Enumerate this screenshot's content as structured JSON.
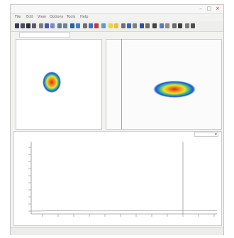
{
  "window": {
    "title": ""
  },
  "menu": {
    "items": [
      "File",
      "Edit",
      "View",
      "Options",
      "Tools",
      "Help"
    ]
  },
  "tab": {
    "label": ""
  },
  "graph": {
    "title": "",
    "selector_value": "",
    "marker_label": ""
  },
  "status": {
    "left": "",
    "right1": "",
    "right2": ""
  },
  "colors": {
    "beam_red": "#e02a1b",
    "beam_yellow": "#f2e11b",
    "beam_blue": "#1f4fd6",
    "plot_line": "#9a9a9a"
  }
}
